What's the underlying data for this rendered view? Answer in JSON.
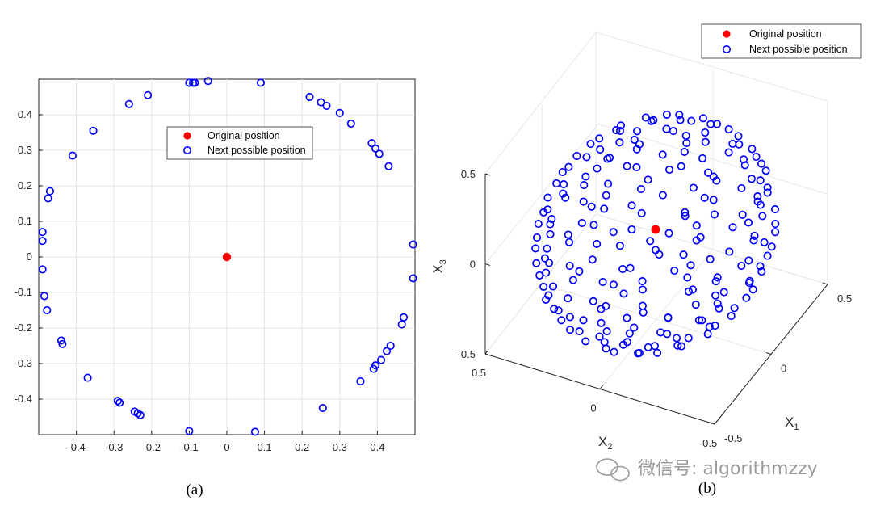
{
  "watermark": "微信号: algorithmzzy",
  "chart_data": [
    {
      "caption": "(a)",
      "type": "scatter",
      "title": "",
      "xlabel": "",
      "ylabel": "",
      "xlim": [
        -0.5,
        0.5
      ],
      "ylim": [
        -0.5,
        0.5
      ],
      "xticks": [
        "-0.4",
        "-0.3",
        "-0.2",
        "-0.1",
        "0",
        "0.1",
        "0.2",
        "0.3",
        "0.4"
      ],
      "yticks": [
        "0.4",
        "0.3",
        "0.2",
        "0.1",
        "0",
        "-0.1",
        "-0.2",
        "-0.3",
        "-0.4"
      ],
      "grid": true,
      "legend": {
        "placement": "upper-center",
        "entries": [
          "Original position",
          "Next possible position"
        ]
      },
      "series": [
        {
          "name": "Original position",
          "marker": "filled-circle",
          "color": "#ff0000",
          "points": [
            [
              0,
              0
            ]
          ]
        },
        {
          "name": "Next possible position",
          "marker": "open-circle",
          "color": "#0000ff",
          "points": [
            [
              -0.1,
              0.49
            ],
            [
              -0.09,
              0.49
            ],
            [
              -0.085,
              0.49
            ],
            [
              -0.05,
              0.495
            ],
            [
              0.09,
              0.49
            ],
            [
              -0.26,
              0.43
            ],
            [
              -0.21,
              0.455
            ],
            [
              0.22,
              0.45
            ],
            [
              0.25,
              0.435
            ],
            [
              0.265,
              0.425
            ],
            [
              0.3,
              0.405
            ],
            [
              0.33,
              0.375
            ],
            [
              -0.355,
              0.355
            ],
            [
              0.385,
              0.32
            ],
            [
              0.395,
              0.305
            ],
            [
              0.405,
              0.29
            ],
            [
              -0.41,
              0.285
            ],
            [
              0.43,
              0.255
            ],
            [
              -0.47,
              0.185
            ],
            [
              -0.475,
              0.165
            ],
            [
              -0.49,
              0.07
            ],
            [
              -0.49,
              0.045
            ],
            [
              0.495,
              0.035
            ],
            [
              -0.49,
              -0.035
            ],
            [
              0.495,
              -0.06
            ],
            [
              -0.485,
              -0.11
            ],
            [
              -0.478,
              -0.15
            ],
            [
              0.47,
              -0.17
            ],
            [
              0.465,
              -0.19
            ],
            [
              -0.44,
              -0.235
            ],
            [
              -0.437,
              -0.245
            ],
            [
              0.435,
              -0.25
            ],
            [
              0.425,
              -0.265
            ],
            [
              0.41,
              -0.29
            ],
            [
              0.395,
              -0.305
            ],
            [
              0.39,
              -0.315
            ],
            [
              -0.37,
              -0.34
            ],
            [
              0.355,
              -0.35
            ],
            [
              -0.29,
              -0.405
            ],
            [
              -0.285,
              -0.41
            ],
            [
              0.255,
              -0.425
            ],
            [
              -0.245,
              -0.435
            ],
            [
              -0.237,
              -0.44
            ],
            [
              -0.23,
              -0.445
            ],
            [
              -0.1,
              -0.49
            ],
            [
              0.075,
              -0.492
            ]
          ]
        }
      ]
    },
    {
      "caption": "(b)",
      "type": "scatter3d",
      "title": "",
      "xlabel": "X",
      "xlabel_sub": "1",
      "ylabel": "X",
      "ylabel_sub": "2",
      "zlabel": "X",
      "zlabel_sub": "3",
      "xlim": [
        -0.5,
        0.5
      ],
      "ylim": [
        -0.5,
        0.5
      ],
      "zlim": [
        -0.5,
        0.5
      ],
      "x_ticks": [
        "-0.5",
        "0",
        "0.5"
      ],
      "y_ticks": [
        "0.5",
        "0",
        "-0.5"
      ],
      "z_ticks": [
        "0.5",
        "0",
        "-0.5"
      ],
      "grid": true,
      "legend": {
        "placement": "top-right",
        "entries": [
          "Original position",
          "Next possible position"
        ]
      },
      "series": [
        {
          "name": "Original position",
          "marker": "filled-circle",
          "color": "#ff0000",
          "points": [
            [
              0,
              0,
              0
            ]
          ]
        },
        {
          "name": "Next possible position",
          "marker": "open-circle",
          "color": "#0000ff",
          "points": []
        }
      ]
    }
  ]
}
